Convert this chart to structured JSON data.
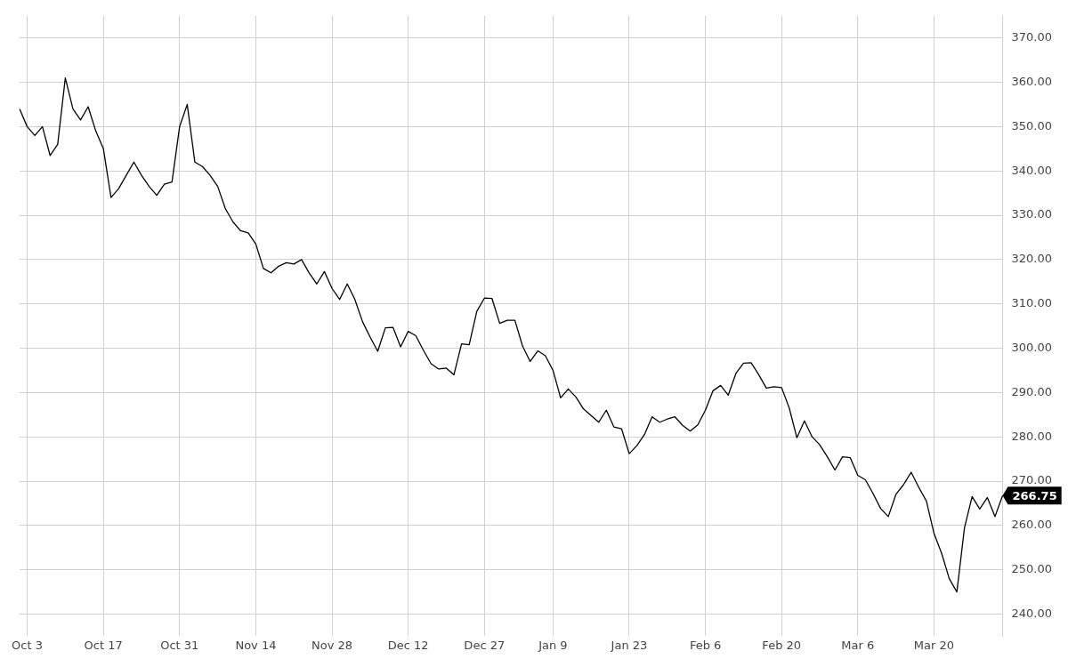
{
  "chart_data": {
    "type": "line",
    "categories": [
      null,
      "Oct 3",
      null,
      null,
      null,
      null,
      null,
      null,
      null,
      null,
      null,
      "Oct 17",
      null,
      null,
      null,
      null,
      null,
      null,
      null,
      null,
      null,
      "Oct 31",
      null,
      null,
      null,
      null,
      null,
      null,
      null,
      null,
      null,
      "Nov 14",
      null,
      null,
      null,
      null,
      null,
      null,
      null,
      null,
      null,
      "Nov 28",
      null,
      null,
      null,
      null,
      null,
      null,
      null,
      null,
      null,
      "Dec 12",
      null,
      null,
      null,
      null,
      null,
      null,
      null,
      null,
      null,
      "Dec 27",
      null,
      null,
      null,
      null,
      null,
      null,
      null,
      null,
      "Jan 9",
      null,
      null,
      null,
      null,
      null,
      null,
      null,
      null,
      null,
      "Jan 23",
      null,
      null,
      null,
      null,
      null,
      null,
      null,
      null,
      null,
      "Feb 6",
      null,
      null,
      null,
      null,
      null,
      null,
      null,
      null,
      null,
      "Feb 20",
      null,
      null,
      null,
      null,
      null,
      null,
      null,
      null,
      null,
      "Mar 6",
      null,
      null,
      null,
      null,
      null,
      null,
      null,
      null,
      null,
      "Mar 20",
      null,
      null,
      null,
      null,
      null,
      null,
      null,
      null,
      null
    ],
    "series": [
      {
        "color": "#000000",
        "values": [
          354,
          350,
          348,
          350,
          343.5,
          346,
          361,
          354,
          351.5,
          354.5,
          349,
          345,
          334,
          336,
          339,
          342,
          339,
          336.5,
          334.5,
          337,
          337.5,
          350,
          355,
          342,
          341,
          339,
          336.5,
          331.5,
          328.5,
          326.5,
          326,
          323.5,
          318,
          317,
          318.5,
          319.3,
          319,
          320,
          317,
          314.5,
          317.3,
          313.5,
          311,
          314.5,
          311,
          306,
          302.5,
          299.3,
          304.6,
          304.7,
          300.3,
          303.8,
          302.8,
          299.5,
          296.5,
          295.3,
          295.5,
          294,
          301,
          300.8,
          308.3,
          311.3,
          311.2,
          305.6,
          306.3,
          306.3,
          300.5,
          297,
          299.4,
          298.3,
          295,
          288.8,
          290.8,
          289,
          286.3,
          284.8,
          283.3,
          286,
          282.2,
          281.8,
          276.2,
          278,
          280.5,
          284.5,
          283.3,
          284,
          284.5,
          282.6,
          281.3,
          282.7,
          286,
          290.4,
          291.6,
          289.4,
          294.3,
          296.6,
          296.7,
          294,
          291,
          291.3,
          291.1,
          286.5,
          279.8,
          283.6,
          280,
          278.2,
          275.5,
          272.5,
          275.5,
          275.3,
          271.3,
          270.3,
          267.2,
          263.8,
          262,
          267,
          269.2,
          272,
          268.6,
          265.5,
          258.2,
          253.7,
          248,
          245,
          259.5,
          266.5,
          263.7,
          266.3,
          262,
          266.75
        ]
      }
    ],
    "ylim": [
      235,
      375
    ],
    "yticks": [
      {
        "value": 240,
        "label": "240.00"
      },
      {
        "value": 250,
        "label": "250.00"
      },
      {
        "value": 260,
        "label": "260.00"
      },
      {
        "value": 270,
        "label": "270.00"
      },
      {
        "value": 280,
        "label": "280.00"
      },
      {
        "value": 290,
        "label": "290.00"
      },
      {
        "value": 300,
        "label": "300.00"
      },
      {
        "value": 310,
        "label": "310.00"
      },
      {
        "value": 320,
        "label": "320.00"
      },
      {
        "value": 330,
        "label": "330.00"
      },
      {
        "value": 340,
        "label": "340.00"
      },
      {
        "value": 350,
        "label": "350.00"
      },
      {
        "value": 360,
        "label": "360.00"
      },
      {
        "value": 370,
        "label": "370.00"
      }
    ],
    "grid": true,
    "legend": false,
    "marker": "none",
    "line_style": "solid",
    "annotations": [
      "266.75"
    ]
  }
}
